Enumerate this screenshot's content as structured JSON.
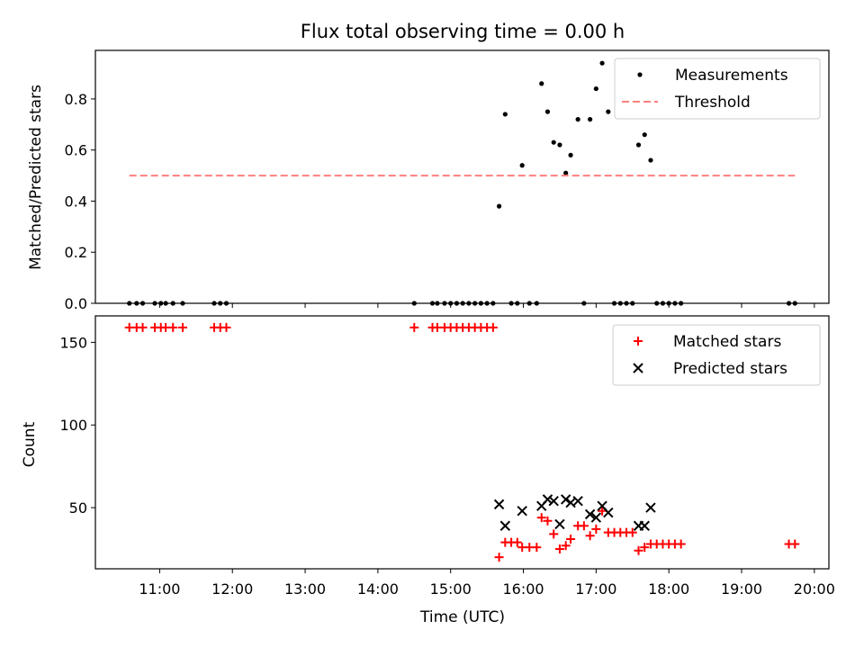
{
  "chart_data": [
    {
      "type": "scatter",
      "title": "Flux total observing time = 0.00 h",
      "xlabel": "",
      "ylabel": "Matched/Predicted stars",
      "xlim": [
        "10:07",
        "20:12"
      ],
      "ylim": [
        0,
        0.99
      ],
      "yticks": [
        0.0,
        0.2,
        0.4,
        0.6,
        0.8
      ],
      "ytick_labels": [
        "0.0",
        "0.2",
        "0.4",
        "0.6",
        "0.8"
      ],
      "grid": false,
      "legend_position": "top-right",
      "series": [
        {
          "name": "Measurements",
          "marker": "dot",
          "color": "#000000",
          "points": [
            [
              "10:35",
              0
            ],
            [
              "10:41",
              0
            ],
            [
              "10:46",
              0
            ],
            [
              "10:56",
              0
            ],
            [
              "11:01",
              0
            ],
            [
              "11:05",
              0
            ],
            [
              "11:11",
              0
            ],
            [
              "11:19",
              0
            ],
            [
              "11:45",
              0
            ],
            [
              "11:50",
              0
            ],
            [
              "11:55",
              0
            ],
            [
              "14:30",
              0
            ],
            [
              "14:45",
              0
            ],
            [
              "14:49",
              0
            ],
            [
              "14:55",
              0
            ],
            [
              "15:00",
              0
            ],
            [
              "15:05",
              0
            ],
            [
              "15:10",
              0
            ],
            [
              "15:15",
              0
            ],
            [
              "15:20",
              0
            ],
            [
              "15:25",
              0
            ],
            [
              "15:30",
              0
            ],
            [
              "15:35",
              0
            ],
            [
              "15:40",
              0.38
            ],
            [
              "15:45",
              0.74
            ],
            [
              "15:50",
              0
            ],
            [
              "15:55",
              0
            ],
            [
              "15:59",
              0.54
            ],
            [
              "16:05",
              0
            ],
            [
              "16:11",
              0
            ],
            [
              "16:15",
              0.86
            ],
            [
              "16:20",
              0.75
            ],
            [
              "16:25",
              0.63
            ],
            [
              "16:30",
              0.62
            ],
            [
              "16:35",
              0.51
            ],
            [
              "16:39",
              0.58
            ],
            [
              "16:45",
              0.72
            ],
            [
              "16:50",
              0
            ],
            [
              "16:55",
              0.72
            ],
            [
              "17:00",
              0.84
            ],
            [
              "17:05",
              0.94
            ],
            [
              "17:10",
              0.75
            ],
            [
              "17:15",
              0
            ],
            [
              "17:20",
              0
            ],
            [
              "17:25",
              0
            ],
            [
              "17:30",
              0
            ],
            [
              "17:35",
              0.62
            ],
            [
              "17:40",
              0.66
            ],
            [
              "17:45",
              0.56
            ],
            [
              "17:50",
              0
            ],
            [
              "17:55",
              0
            ],
            [
              "18:00",
              0
            ],
            [
              "18:05",
              0
            ],
            [
              "18:10",
              0
            ],
            [
              "19:39",
              0
            ],
            [
              "19:44",
              0
            ]
          ]
        },
        {
          "name": "Threshold",
          "style": "dashed",
          "color": "#ff7f7f",
          "points": [
            [
              "10:35",
              0.5
            ],
            [
              "19:44",
              0.5
            ]
          ]
        }
      ]
    },
    {
      "type": "scatter",
      "title": "",
      "xlabel": "Time (UTC)",
      "ylabel": "Count",
      "xlim": [
        "10:07",
        "20:12"
      ],
      "ylim": [
        13,
        166
      ],
      "yticks": [
        50,
        100,
        150
      ],
      "ytick_labels": [
        "50",
        "100",
        "150"
      ],
      "xticks": [
        "11:00",
        "12:00",
        "13:00",
        "14:00",
        "15:00",
        "16:00",
        "17:00",
        "18:00",
        "19:00",
        "20:00"
      ],
      "grid": false,
      "legend_position": "top-right",
      "series": [
        {
          "name": "Matched stars",
          "marker": "plus",
          "color": "#ff0000",
          "points": [
            [
              "10:35",
              159
            ],
            [
              "10:41",
              159
            ],
            [
              "10:46",
              159
            ],
            [
              "10:56",
              159
            ],
            [
              "11:01",
              159
            ],
            [
              "11:05",
              159
            ],
            [
              "11:11",
              159
            ],
            [
              "11:19",
              159
            ],
            [
              "11:45",
              159
            ],
            [
              "11:50",
              159
            ],
            [
              "11:55",
              159
            ],
            [
              "14:30",
              159
            ],
            [
              "14:45",
              159
            ],
            [
              "14:49",
              159
            ],
            [
              "14:55",
              159
            ],
            [
              "15:00",
              159
            ],
            [
              "15:05",
              159
            ],
            [
              "15:10",
              159
            ],
            [
              "15:15",
              159
            ],
            [
              "15:20",
              159
            ],
            [
              "15:25",
              159
            ],
            [
              "15:30",
              159
            ],
            [
              "15:35",
              159
            ],
            [
              "15:40",
              20
            ],
            [
              "15:45",
              29
            ],
            [
              "15:50",
              29
            ],
            [
              "15:55",
              29
            ],
            [
              "15:59",
              26
            ],
            [
              "16:05",
              26
            ],
            [
              "16:11",
              26
            ],
            [
              "16:15",
              44
            ],
            [
              "16:20",
              42
            ],
            [
              "16:25",
              34
            ],
            [
              "16:30",
              25
            ],
            [
              "16:35",
              27
            ],
            [
              "16:39",
              31
            ],
            [
              "16:45",
              39
            ],
            [
              "16:50",
              39
            ],
            [
              "16:55",
              33
            ],
            [
              "17:00",
              37
            ],
            [
              "17:05",
              48
            ],
            [
              "17:10",
              35
            ],
            [
              "17:15",
              35
            ],
            [
              "17:20",
              35
            ],
            [
              "17:25",
              35
            ],
            [
              "17:30",
              35
            ],
            [
              "17:35",
              24
            ],
            [
              "17:40",
              26
            ],
            [
              "17:45",
              28
            ],
            [
              "17:50",
              28
            ],
            [
              "17:55",
              28
            ],
            [
              "18:00",
              28
            ],
            [
              "18:05",
              28
            ],
            [
              "18:10",
              28
            ],
            [
              "19:39",
              28
            ],
            [
              "19:44",
              28
            ]
          ]
        },
        {
          "name": "Predicted stars",
          "marker": "x",
          "color": "#000000",
          "points": [
            [
              "15:40",
              52
            ],
            [
              "15:45",
              39
            ],
            [
              "15:59",
              48
            ],
            [
              "16:15",
              51
            ],
            [
              "16:20",
              55
            ],
            [
              "16:25",
              54
            ],
            [
              "16:30",
              40
            ],
            [
              "16:35",
              55
            ],
            [
              "16:39",
              53
            ],
            [
              "16:45",
              54
            ],
            [
              "16:55",
              46
            ],
            [
              "17:00",
              44
            ],
            [
              "17:05",
              51
            ],
            [
              "17:10",
              47
            ],
            [
              "17:35",
              39
            ],
            [
              "17:40",
              39
            ],
            [
              "17:45",
              50
            ]
          ]
        }
      ]
    }
  ]
}
